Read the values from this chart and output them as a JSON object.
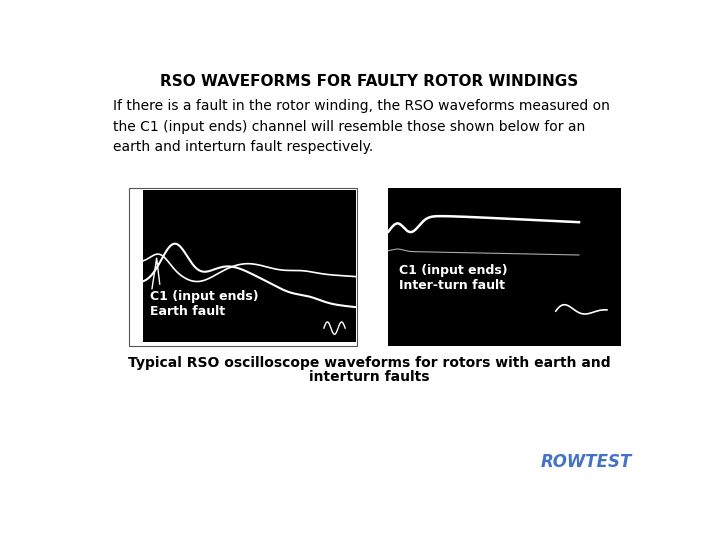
{
  "title": "RSO WAVEFORMS FOR FAULTY ROTOR WINDINGS",
  "body_text": "If there is a fault in the rotor winding, the RSO waveforms measured on\nthe C1 (input ends) channel will resemble those shown below for an\nearth and interturn fault respectively.",
  "caption_line1": "Typical RSO oscilloscope waveforms for rotors with earth and",
  "caption_line2": "interturn faults",
  "watermark": "ROWTEST",
  "watermark_color": "#4472C4",
  "left_label1": "C1 (input ends)",
  "left_label2": "Earth fault",
  "right_label1": "C1 (input ends)",
  "right_label2": "Inter-turn fault",
  "bg_color": "#ffffff",
  "osc_bg": "#000000",
  "wave_color": "#ffffff",
  "title_fontsize": 11,
  "body_fontsize": 10,
  "caption_fontsize": 10,
  "label_fontsize": 9,
  "watermark_fontsize": 12
}
